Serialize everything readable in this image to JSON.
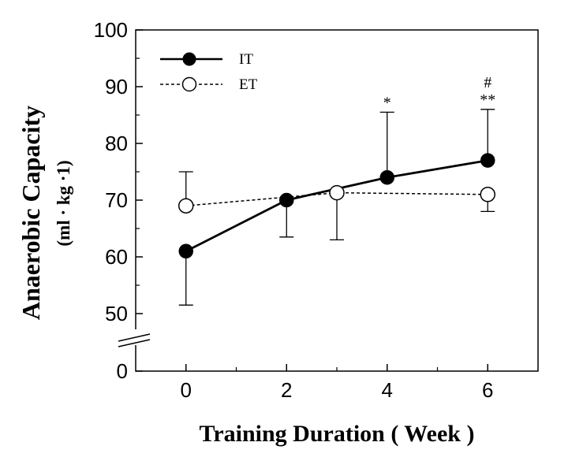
{
  "chart_data": {
    "type": "line",
    "xlabel": "Training Duration ( Week )",
    "ylabel": "Anaerobic Capacity",
    "ylabel_units": "(ml · kg ·1)",
    "xlim": [
      -1,
      7
    ],
    "ylim": [
      0,
      100
    ],
    "y_axis_break": [
      0,
      45
    ],
    "x_ticks": [
      0,
      2,
      4,
      6
    ],
    "y_ticks": [
      0,
      50,
      60,
      70,
      80,
      90,
      100
    ],
    "grid": false,
    "legend_position": "top-left",
    "series": [
      {
        "name": "IT",
        "marker": "filled-circle",
        "line": "solid",
        "color": "#000000",
        "x": [
          0,
          2,
          4,
          6
        ],
        "y": [
          61,
          70,
          74,
          77
        ],
        "error_upper": [
          null,
          null,
          85.5,
          86
        ],
        "error_lower": [
          51.5,
          63.5,
          null,
          null
        ]
      },
      {
        "name": "ET",
        "marker": "open-circle",
        "line": "dashed",
        "color": "#000000",
        "x": [
          0,
          3,
          6
        ],
        "y": [
          69,
          71.3,
          71
        ],
        "error_upper": [
          75,
          null,
          null
        ],
        "error_lower": [
          null,
          63,
          68
        ]
      }
    ],
    "annotations": [
      {
        "text": "*",
        "x": 4
      },
      {
        "text": "#",
        "x": 6
      },
      {
        "text": "**",
        "x": 6
      }
    ]
  }
}
